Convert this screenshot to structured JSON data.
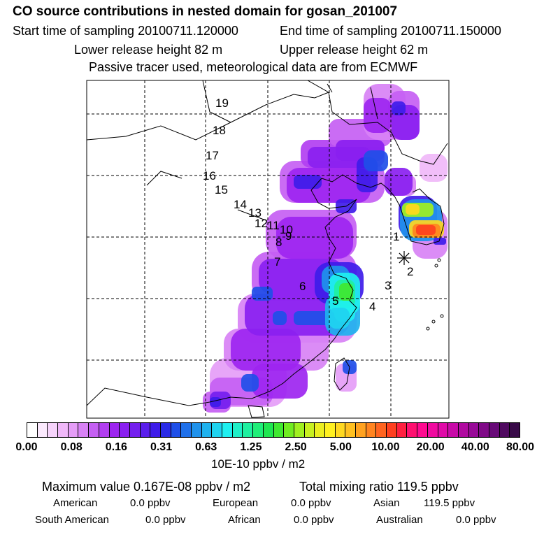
{
  "header": {
    "title": "CO  source contributions in nested domain for gosan_201007",
    "start_time": "Start time of sampling 20100711.120000",
    "end_time": "End time of sampling 20100711.150000",
    "lower_release": "Lower release height   82 m",
    "upper_release": "Upper release height   62 m",
    "tracer_note": "Passive tracer used, meteorological data are from ECMWF"
  },
  "chart_data": {
    "type": "heatmap",
    "title": "CO  source contributions in nested domain for gosan_201007",
    "grid": true,
    "trajectory_labels": [
      "1",
      "2",
      "3",
      "4",
      "5",
      "6",
      "7",
      "8",
      "9",
      "10",
      "11",
      "12",
      "13",
      "14",
      "15",
      "16",
      "17",
      "18",
      "19"
    ],
    "receptor_marker": "star",
    "colorbar": {
      "tick_labels": [
        "0.00",
        "0.08",
        "0.16",
        "0.31",
        "0.63",
        "1.25",
        "2.50",
        "5.00",
        "10.00",
        "20.00",
        "40.00",
        "80.00"
      ],
      "units": "10E-10 ppbv / m2",
      "colors": [
        "#ffffff",
        "#fbe9fd",
        "#f6d3fb",
        "#f0b8f9",
        "#e59df7",
        "#d882f5",
        "#c560f3",
        "#b23ff1",
        "#9d25f0",
        "#8a20f0",
        "#7420ee",
        "#5a1eec",
        "#3e1ce9",
        "#2a2be6",
        "#1f4fe8",
        "#1f70ea",
        "#1f92ec",
        "#1fb2ee",
        "#1fd3f0",
        "#1ff0f0",
        "#1ff0c8",
        "#1ff0a0",
        "#1fee78",
        "#1fe650",
        "#40e830",
        "#70ec20",
        "#a0f020",
        "#c8f020",
        "#ecee20",
        "#fff020",
        "#ffd820",
        "#ffc020",
        "#ffa220",
        "#ff8420",
        "#ff6420",
        "#ff4020",
        "#ff2040",
        "#ff1070",
        "#ff0a90",
        "#f00aa0",
        "#e00aa8",
        "#c80aa8",
        "#b00aa0",
        "#980a98",
        "#800a88",
        "#680a78",
        "#500a60",
        "#380a48"
      ]
    }
  },
  "stats": {
    "max_value": "Maximum value  0.167E-08 ppbv / m2",
    "total_mixing": "Total mixing ratio      119.5 ppbv",
    "american": "American",
    "american_val": "0.0 ppbv",
    "european": "European",
    "european_val": "0.0 ppbv",
    "asian": "Asian",
    "asian_val": "119.5 ppbv",
    "south_american": "South American",
    "south_american_val": "0.0 ppbv",
    "african": "African",
    "african_val": "0.0 ppbv",
    "australian": "Australian",
    "australian_val": "0.0 ppbv"
  }
}
